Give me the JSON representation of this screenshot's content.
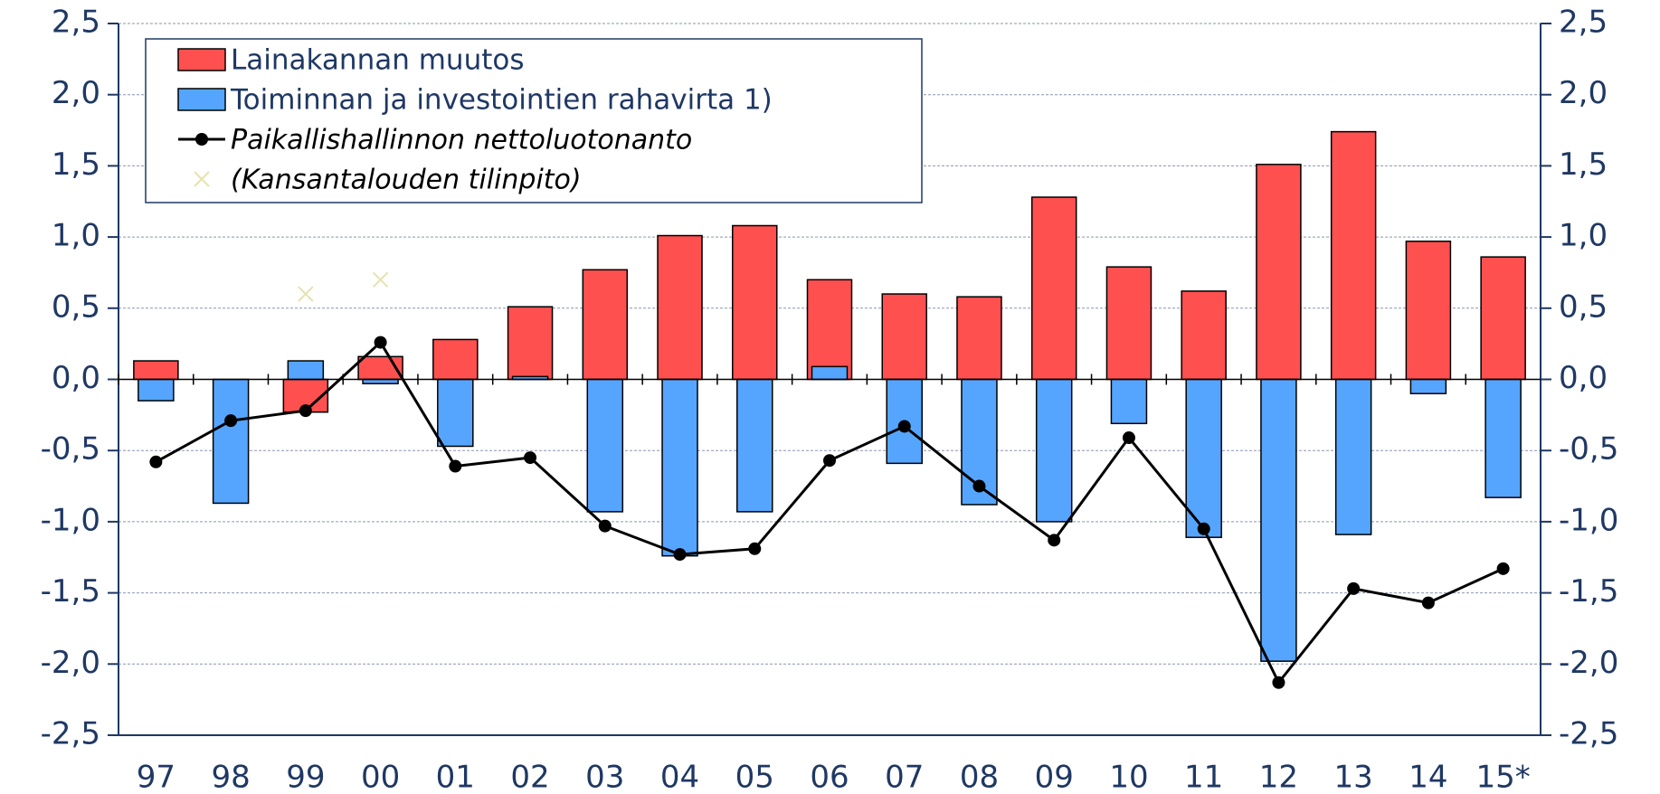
{
  "chart_data": {
    "type": "bar",
    "categories": [
      "97",
      "98",
      "99",
      "00",
      "01",
      "02",
      "03",
      "04",
      "05",
      "06",
      "07",
      "08",
      "09",
      "10",
      "11",
      "12",
      "13",
      "14",
      "15*"
    ],
    "series": [
      {
        "name": "Lainakannan muutos",
        "type": "bar",
        "color": "#ff5050",
        "values": [
          0.13,
          0.0,
          -0.23,
          0.16,
          0.28,
          0.51,
          0.77,
          1.01,
          1.08,
          0.7,
          0.6,
          0.58,
          1.28,
          0.79,
          0.62,
          1.51,
          1.74,
          0.97,
          0.86
        ]
      },
      {
        "name": "Toiminnan ja investointien rahavirta 1)",
        "type": "bar",
        "color": "#55a5ff",
        "values": [
          -0.15,
          -0.87,
          0.13,
          -0.03,
          -0.47,
          0.02,
          -0.93,
          -1.24,
          -0.93,
          0.09,
          -0.59,
          -0.88,
          -1.0,
          -0.31,
          -1.11,
          -1.98,
          -1.09,
          -0.1,
          -0.83
        ]
      },
      {
        "name": "Paikallishallinnon nettoluotonanto",
        "type": "line",
        "color": "#000000",
        "values": [
          -0.58,
          -0.29,
          -0.22,
          0.26,
          -0.61,
          -0.55,
          -1.03,
          -1.23,
          -1.19,
          -0.57,
          -0.33,
          -0.75,
          -1.13,
          -0.41,
          -1.05,
          -2.13,
          -1.47,
          -1.57,
          -1.33
        ]
      },
      {
        "name": "(Kansantalouden tilinpito)",
        "type": "scatter",
        "color": "#e6e2b0",
        "values": [
          null,
          null,
          0.6,
          0.7,
          null,
          null,
          null,
          null,
          null,
          null,
          null,
          null,
          null,
          null,
          null,
          null,
          null,
          null,
          null
        ]
      }
    ],
    "ylim": [
      -2.5,
      2.5
    ],
    "yticks": [
      {
        "value": -2.5,
        "label": "-2,5"
      },
      {
        "value": -2.0,
        "label": "-2,0"
      },
      {
        "value": -1.5,
        "label": "-1,5"
      },
      {
        "value": -1.0,
        "label": "-1,0"
      },
      {
        "value": -0.5,
        "label": "-0,5"
      },
      {
        "value": 0,
        "label": "0,0"
      },
      {
        "value": 0.5,
        "label": "0,5"
      },
      {
        "value": 1.0,
        "label": "1,0"
      },
      {
        "value": 1.5,
        "label": "1,5"
      },
      {
        "value": 2.0,
        "label": "2,0"
      },
      {
        "value": 2.5,
        "label": "2,5"
      }
    ],
    "y2lim": [
      -2.5,
      2.5
    ],
    "y2ticks": [
      {
        "value": -2.5,
        "label": "-2,5"
      },
      {
        "value": -2.0,
        "label": "-2,0"
      },
      {
        "value": -1.5,
        "label": "-1,5"
      },
      {
        "value": -1.0,
        "label": "-1,0"
      },
      {
        "value": -0.5,
        "label": "-0,5"
      },
      {
        "value": 0,
        "label": "0,0"
      },
      {
        "value": 0.5,
        "label": "0,5"
      },
      {
        "value": 1.0,
        "label": "1,0"
      },
      {
        "value": 1.5,
        "label": "1,5"
      },
      {
        "value": 2.0,
        "label": "2,0"
      },
      {
        "value": 2.5,
        "label": "2,5"
      }
    ],
    "grid": true
  }
}
